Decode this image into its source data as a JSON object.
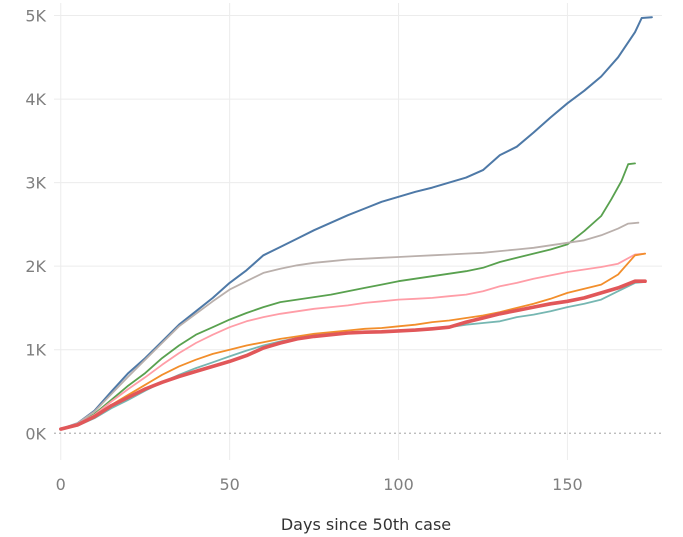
{
  "chart_data": {
    "type": "line",
    "title": "",
    "xlabel": "Days since 50th case",
    "ylabel": "",
    "xlim": [
      -2,
      178
    ],
    "ylim": [
      -320,
      5150
    ],
    "x_ticks": [
      0,
      50,
      100,
      150
    ],
    "x_tick_labels": [
      "0",
      "50",
      "100",
      "150"
    ],
    "y_ticks": [
      0,
      1000,
      2000,
      3000,
      4000,
      5000
    ],
    "y_tick_labels": [
      "0K",
      "1K",
      "2K",
      "3K",
      "4K",
      "5K"
    ],
    "grid": true,
    "legend": "none",
    "series": [
      {
        "color": "#4e79a7",
        "width": 2,
        "points": [
          [
            0,
            50
          ],
          [
            5,
            120
          ],
          [
            10,
            270
          ],
          [
            15,
            500
          ],
          [
            20,
            720
          ],
          [
            25,
            900
          ],
          [
            30,
            1100
          ],
          [
            35,
            1300
          ],
          [
            40,
            1460
          ],
          [
            45,
            1620
          ],
          [
            50,
            1800
          ],
          [
            55,
            1950
          ],
          [
            60,
            2130
          ],
          [
            65,
            2230
          ],
          [
            70,
            2330
          ],
          [
            75,
            2430
          ],
          [
            80,
            2520
          ],
          [
            85,
            2610
          ],
          [
            90,
            2690
          ],
          [
            95,
            2770
          ],
          [
            100,
            2830
          ],
          [
            105,
            2890
          ],
          [
            110,
            2940
          ],
          [
            115,
            3000
          ],
          [
            120,
            3060
          ],
          [
            125,
            3150
          ],
          [
            130,
            3330
          ],
          [
            135,
            3430
          ],
          [
            140,
            3600
          ],
          [
            145,
            3780
          ],
          [
            150,
            3950
          ],
          [
            155,
            4100
          ],
          [
            160,
            4270
          ],
          [
            165,
            4500
          ],
          [
            170,
            4800
          ],
          [
            172,
            4970
          ],
          [
            175,
            4980
          ]
        ]
      },
      {
        "color": "#59a14f",
        "width": 1.8,
        "points": [
          [
            0,
            50
          ],
          [
            5,
            110
          ],
          [
            10,
            230
          ],
          [
            15,
            400
          ],
          [
            20,
            570
          ],
          [
            25,
            720
          ],
          [
            30,
            900
          ],
          [
            35,
            1050
          ],
          [
            40,
            1180
          ],
          [
            45,
            1270
          ],
          [
            50,
            1360
          ],
          [
            55,
            1440
          ],
          [
            60,
            1510
          ],
          [
            65,
            1570
          ],
          [
            70,
            1600
          ],
          [
            75,
            1630
          ],
          [
            80,
            1660
          ],
          [
            85,
            1700
          ],
          [
            90,
            1740
          ],
          [
            95,
            1780
          ],
          [
            100,
            1820
          ],
          [
            105,
            1850
          ],
          [
            110,
            1880
          ],
          [
            115,
            1910
          ],
          [
            120,
            1940
          ],
          [
            125,
            1980
          ],
          [
            130,
            2050
          ],
          [
            135,
            2100
          ],
          [
            140,
            2150
          ],
          [
            145,
            2200
          ],
          [
            150,
            2260
          ],
          [
            155,
            2420
          ],
          [
            160,
            2600
          ],
          [
            163,
            2800
          ],
          [
            166,
            3020
          ],
          [
            168,
            3220
          ],
          [
            170,
            3230
          ]
        ]
      },
      {
        "color": "#bab0ac",
        "width": 1.8,
        "points": [
          [
            0,
            50
          ],
          [
            5,
            120
          ],
          [
            10,
            260
          ],
          [
            15,
            470
          ],
          [
            20,
            680
          ],
          [
            25,
            880
          ],
          [
            30,
            1080
          ],
          [
            35,
            1280
          ],
          [
            40,
            1430
          ],
          [
            45,
            1580
          ],
          [
            50,
            1720
          ],
          [
            55,
            1820
          ],
          [
            60,
            1920
          ],
          [
            65,
            1970
          ],
          [
            70,
            2010
          ],
          [
            75,
            2040
          ],
          [
            80,
            2060
          ],
          [
            85,
            2080
          ],
          [
            90,
            2090
          ],
          [
            95,
            2100
          ],
          [
            100,
            2110
          ],
          [
            105,
            2120
          ],
          [
            110,
            2130
          ],
          [
            115,
            2140
          ],
          [
            120,
            2150
          ],
          [
            125,
            2160
          ],
          [
            130,
            2180
          ],
          [
            135,
            2200
          ],
          [
            140,
            2220
          ],
          [
            145,
            2250
          ],
          [
            150,
            2280
          ],
          [
            155,
            2310
          ],
          [
            160,
            2370
          ],
          [
            165,
            2450
          ],
          [
            168,
            2510
          ],
          [
            171,
            2520
          ]
        ]
      },
      {
        "color": "#ff9da7",
        "width": 1.8,
        "points": [
          [
            0,
            50
          ],
          [
            5,
            110
          ],
          [
            10,
            220
          ],
          [
            15,
            380
          ],
          [
            20,
            530
          ],
          [
            25,
            670
          ],
          [
            30,
            820
          ],
          [
            35,
            960
          ],
          [
            40,
            1080
          ],
          [
            45,
            1180
          ],
          [
            50,
            1270
          ],
          [
            55,
            1340
          ],
          [
            60,
            1390
          ],
          [
            65,
            1430
          ],
          [
            70,
            1460
          ],
          [
            75,
            1490
          ],
          [
            80,
            1510
          ],
          [
            85,
            1530
          ],
          [
            90,
            1560
          ],
          [
            95,
            1580
          ],
          [
            100,
            1600
          ],
          [
            105,
            1610
          ],
          [
            110,
            1620
          ],
          [
            115,
            1640
          ],
          [
            120,
            1660
          ],
          [
            125,
            1700
          ],
          [
            130,
            1760
          ],
          [
            135,
            1800
          ],
          [
            140,
            1850
          ],
          [
            145,
            1890
          ],
          [
            150,
            1930
          ],
          [
            155,
            1960
          ],
          [
            160,
            1990
          ],
          [
            165,
            2030
          ],
          [
            170,
            2140
          ],
          [
            173,
            2150
          ]
        ]
      },
      {
        "color": "#f28e2b",
        "width": 1.8,
        "points": [
          [
            0,
            50
          ],
          [
            5,
            100
          ],
          [
            10,
            200
          ],
          [
            15,
            340
          ],
          [
            20,
            460
          ],
          [
            25,
            580
          ],
          [
            30,
            700
          ],
          [
            35,
            800
          ],
          [
            40,
            880
          ],
          [
            45,
            950
          ],
          [
            50,
            1000
          ],
          [
            55,
            1050
          ],
          [
            60,
            1090
          ],
          [
            65,
            1130
          ],
          [
            70,
            1160
          ],
          [
            75,
            1190
          ],
          [
            80,
            1210
          ],
          [
            85,
            1230
          ],
          [
            90,
            1250
          ],
          [
            95,
            1260
          ],
          [
            100,
            1280
          ],
          [
            105,
            1300
          ],
          [
            110,
            1330
          ],
          [
            115,
            1350
          ],
          [
            120,
            1380
          ],
          [
            125,
            1410
          ],
          [
            130,
            1450
          ],
          [
            135,
            1500
          ],
          [
            140,
            1550
          ],
          [
            145,
            1610
          ],
          [
            150,
            1680
          ],
          [
            155,
            1730
          ],
          [
            160,
            1780
          ],
          [
            165,
            1900
          ],
          [
            170,
            2130
          ],
          [
            173,
            2150
          ]
        ]
      },
      {
        "color": "#76b7b2",
        "width": 1.8,
        "points": [
          [
            0,
            50
          ],
          [
            5,
            90
          ],
          [
            10,
            180
          ],
          [
            15,
            300
          ],
          [
            20,
            400
          ],
          [
            25,
            510
          ],
          [
            30,
            610
          ],
          [
            35,
            700
          ],
          [
            40,
            780
          ],
          [
            45,
            850
          ],
          [
            50,
            920
          ],
          [
            55,
            990
          ],
          [
            60,
            1050
          ],
          [
            65,
            1100
          ],
          [
            70,
            1140
          ],
          [
            75,
            1170
          ],
          [
            80,
            1190
          ],
          [
            85,
            1200
          ],
          [
            90,
            1210
          ],
          [
            95,
            1220
          ],
          [
            100,
            1230
          ],
          [
            105,
            1240
          ],
          [
            110,
            1250
          ],
          [
            115,
            1270
          ],
          [
            120,
            1300
          ],
          [
            125,
            1320
          ],
          [
            130,
            1340
          ],
          [
            135,
            1390
          ],
          [
            140,
            1420
          ],
          [
            145,
            1460
          ],
          [
            150,
            1510
          ],
          [
            155,
            1550
          ],
          [
            160,
            1600
          ],
          [
            165,
            1700
          ],
          [
            170,
            1800
          ],
          [
            173,
            1810
          ]
        ]
      },
      {
        "color": "#e15759",
        "width": 3.6,
        "points": [
          [
            0,
            50
          ],
          [
            5,
            100
          ],
          [
            10,
            200
          ],
          [
            15,
            330
          ],
          [
            20,
            430
          ],
          [
            25,
            530
          ],
          [
            30,
            610
          ],
          [
            35,
            680
          ],
          [
            40,
            740
          ],
          [
            45,
            800
          ],
          [
            50,
            860
          ],
          [
            55,
            930
          ],
          [
            60,
            1020
          ],
          [
            65,
            1080
          ],
          [
            70,
            1130
          ],
          [
            75,
            1160
          ],
          [
            80,
            1180
          ],
          [
            85,
            1200
          ],
          [
            90,
            1210
          ],
          [
            95,
            1215
          ],
          [
            100,
            1225
          ],
          [
            105,
            1235
          ],
          [
            110,
            1250
          ],
          [
            115,
            1270
          ],
          [
            120,
            1330
          ],
          [
            125,
            1380
          ],
          [
            130,
            1430
          ],
          [
            135,
            1470
          ],
          [
            140,
            1510
          ],
          [
            145,
            1550
          ],
          [
            150,
            1580
          ],
          [
            155,
            1620
          ],
          [
            160,
            1680
          ],
          [
            165,
            1740
          ],
          [
            170,
            1820
          ],
          [
            173,
            1820
          ]
        ]
      }
    ]
  }
}
